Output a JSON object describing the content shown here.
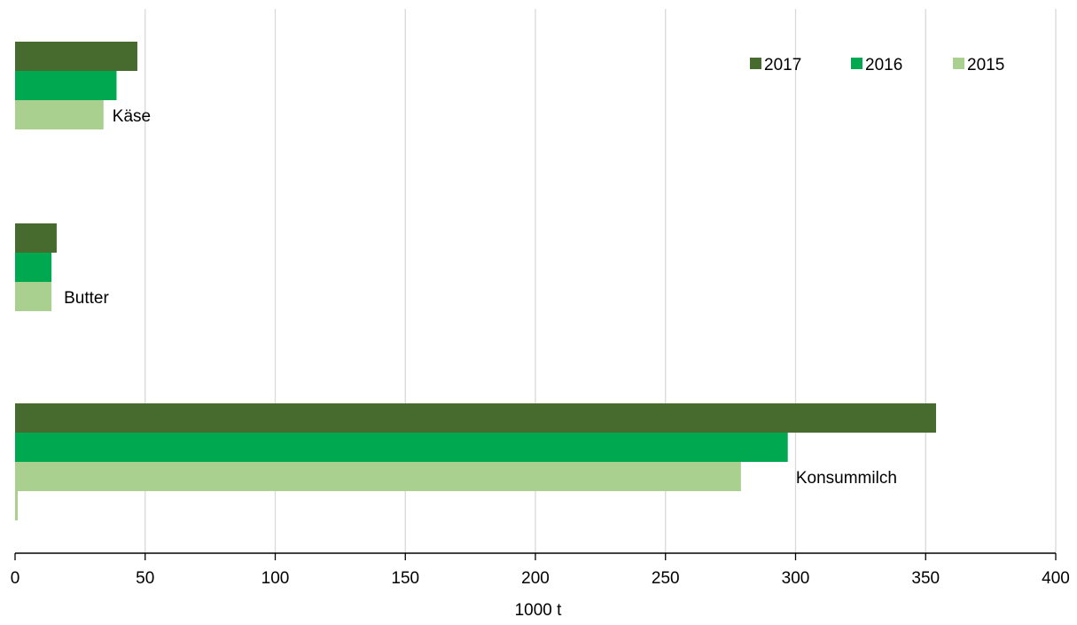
{
  "chart_data": {
    "type": "bar",
    "orientation": "horizontal",
    "categories": [
      "Käse",
      "Butter",
      "Konsummilch"
    ],
    "series": [
      {
        "name": "2017",
        "color": "#476a2e",
        "values": [
          47,
          16,
          354
        ]
      },
      {
        "name": "2016",
        "color": "#00a84f",
        "values": [
          39,
          14,
          297
        ]
      },
      {
        "name": "2015",
        "color": "#a9d08e",
        "values": [
          34,
          14,
          279
        ]
      }
    ],
    "xlabel": "1000 t",
    "xlim": [
      0,
      400
    ],
    "xticks": [
      "0",
      "50",
      "100",
      "150",
      "200",
      "250",
      "300",
      "350",
      "400"
    ],
    "grid": "vertical",
    "legend_position": "top-right"
  }
}
